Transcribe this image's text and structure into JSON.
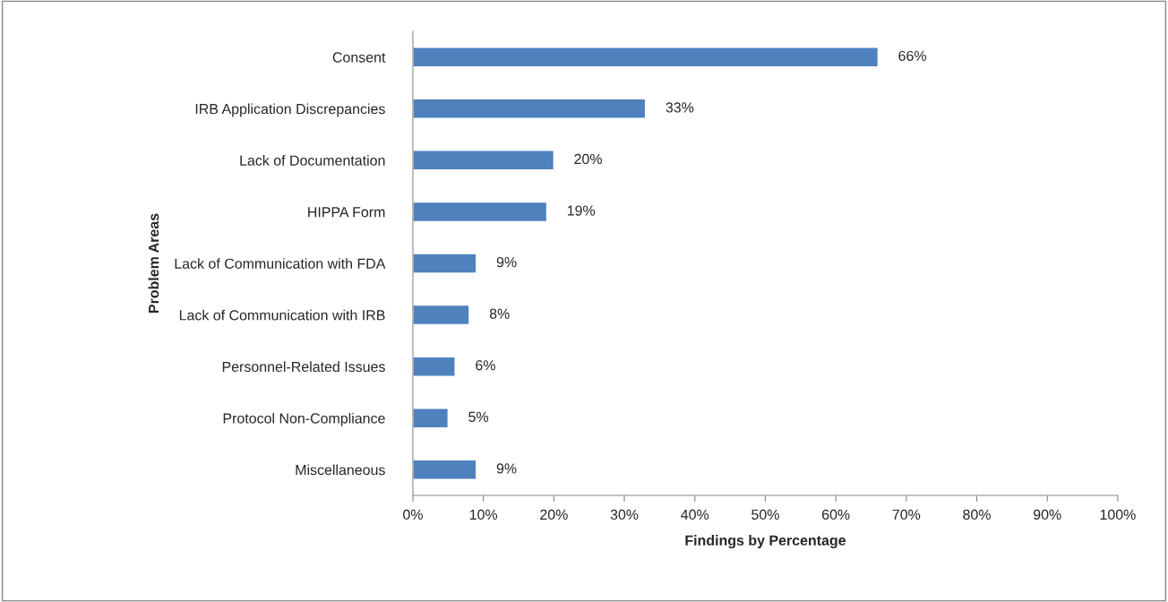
{
  "chart_data": {
    "type": "bar",
    "orientation": "horizontal",
    "xlabel": "Findings by Percentage",
    "ylabel": "Problem Areas",
    "categories": [
      "Consent",
      "IRB Application Discrepancies",
      "Lack of Documentation",
      "HIPPA Form",
      "Lack of Communication with FDA",
      "Lack of Communication with IRB",
      "Personnel-Related Issues",
      "Protocol Non-Compliance",
      "Miscellaneous"
    ],
    "values": [
      66,
      33,
      20,
      19,
      9,
      8,
      6,
      5,
      9
    ],
    "value_labels": [
      "66%",
      "33%",
      "20%",
      "19%",
      "9%",
      "8%",
      "6%",
      "5%",
      "9%"
    ],
    "color": "#4f81bd",
    "xlim": [
      0,
      100
    ],
    "xticks": [
      {
        "value": 0,
        "label": "0%"
      },
      {
        "value": 10,
        "label": "10%"
      },
      {
        "value": 20,
        "label": "20%"
      },
      {
        "value": 30,
        "label": "30%"
      },
      {
        "value": 40,
        "label": "40%"
      },
      {
        "value": 50,
        "label": "50%"
      },
      {
        "value": 60,
        "label": "60%"
      },
      {
        "value": 70,
        "label": "70%"
      },
      {
        "value": 80,
        "label": "80%"
      },
      {
        "value": 90,
        "label": "90%"
      },
      {
        "value": 100,
        "label": "100%"
      }
    ],
    "grid": false,
    "legend": false
  }
}
